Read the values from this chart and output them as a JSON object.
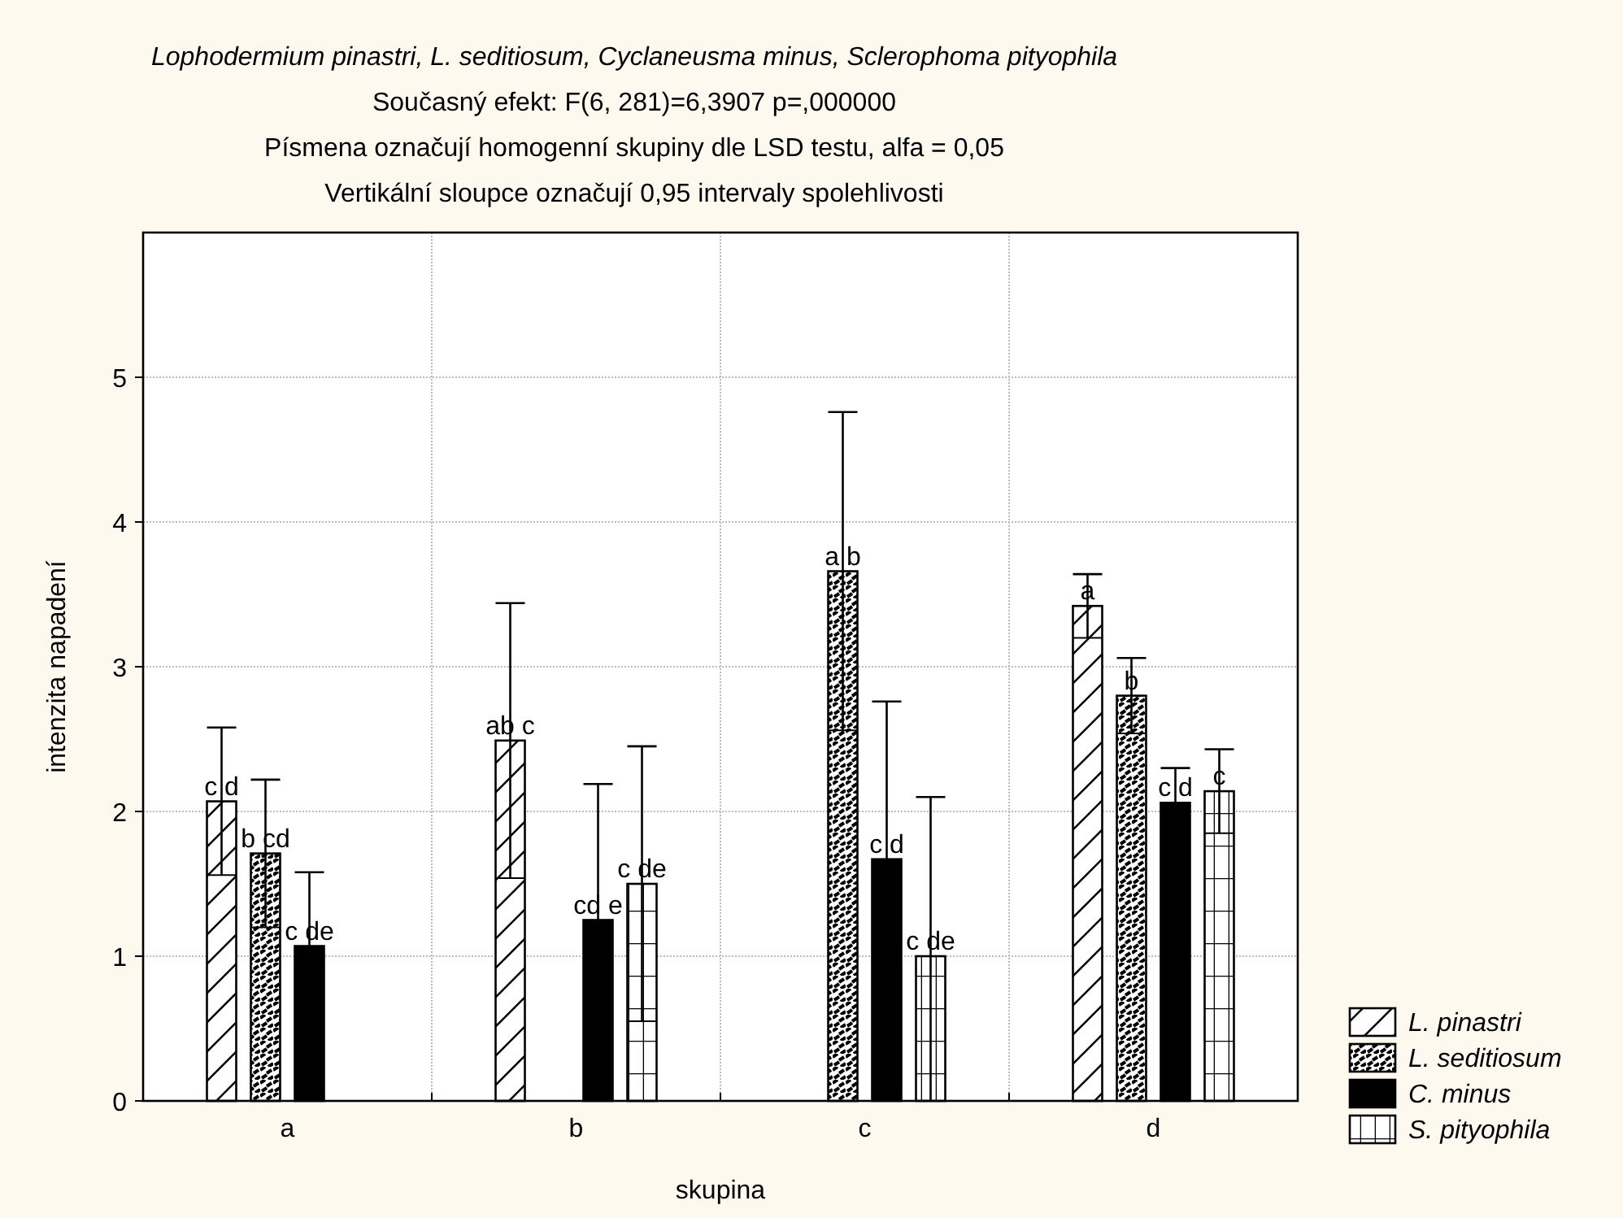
{
  "chart_data": {
    "type": "bar",
    "title": "Lophodermium pinastri, L. seditiosum, Cyclaneusma minus, Sclerophoma pityophila",
    "subtitle": "Současný efekt: F(6, 281)=6,3907 p=,000000\nPísmena označují homogenní skupiny dle LSD testu, alfa = 0,05\nVertikální sloupce označují 0,95 intervaly spolehlivosti",
    "xlabel": "skupina",
    "ylabel": "intenzita napadení",
    "categories": [
      "a",
      "b",
      "c",
      "d"
    ],
    "ylim": [
      0,
      6
    ],
    "yticks": [
      0,
      1,
      2,
      3,
      4,
      5
    ],
    "grid": true,
    "legend": "bottom right",
    "series": [
      {
        "name": "L. pinastri",
        "color": "#000000",
        "values": [
          2.07,
          2.49,
          null,
          3.42
        ],
        "errors": [
          0.51,
          0.95,
          null,
          0.22
        ],
        "value_labels": [
          "c d",
          "ab c",
          null,
          "a"
        ]
      },
      {
        "name": "L. seditiosum",
        "color": "#000000",
        "values": [
          1.71,
          null,
          3.66,
          2.8
        ],
        "errors": [
          0.51,
          null,
          1.1,
          0.26
        ],
        "value_labels": [
          "b cd",
          null,
          "a b",
          "b"
        ]
      },
      {
        "name": "C. minus",
        "color": "#000000",
        "values": [
          1.07,
          1.25,
          1.67,
          2.06
        ],
        "errors": [
          0.51,
          0.94,
          1.09,
          0.24
        ],
        "value_labels": [
          "c de",
          "cd e",
          "c d",
          "c d"
        ]
      },
      {
        "name": "S. pityophila",
        "color": "#000000",
        "values": [
          null,
          1.5,
          1.0,
          2.14
        ],
        "errors": [
          null,
          0.95,
          [
            0,
            2.1
          ],
          0.29
        ],
        "value_labels": [
          null,
          "c de",
          "c de",
          "c"
        ]
      }
    ]
  }
}
